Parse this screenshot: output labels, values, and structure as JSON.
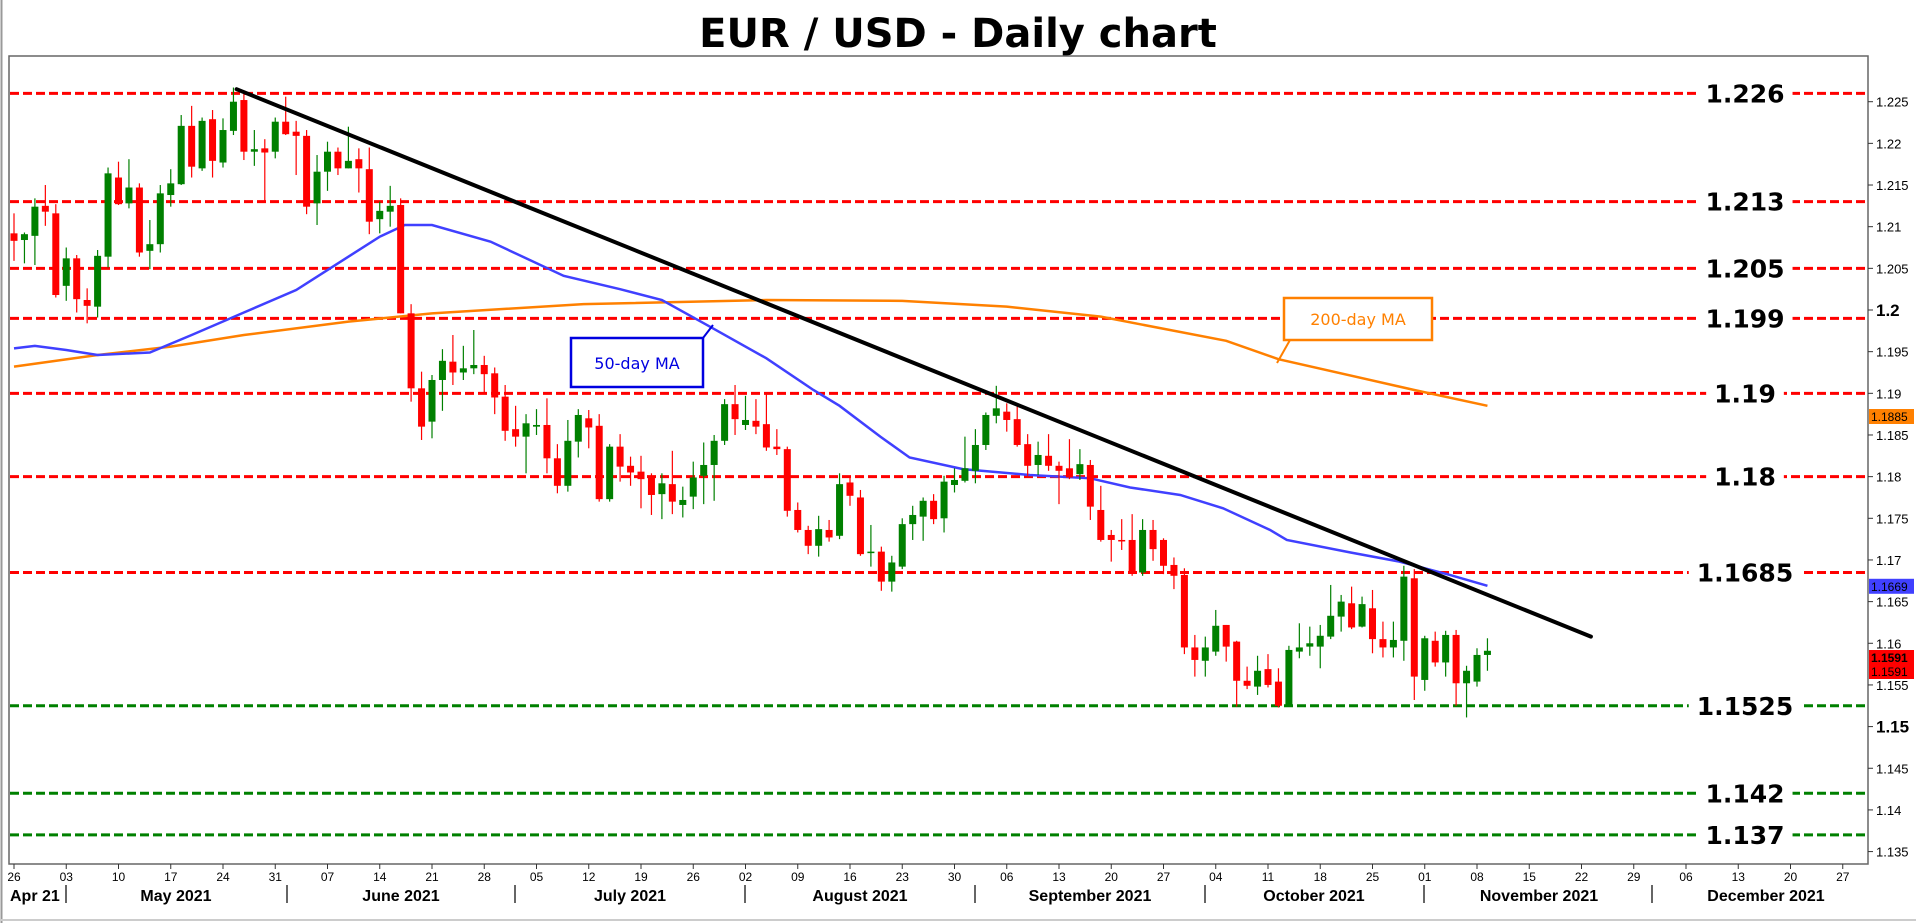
{
  "chart_data": {
    "type": "candlestick",
    "title": "EUR / USD - Daily chart",
    "ylim": [
      1.133,
      1.2305
    ],
    "y_ticks": [
      "1.135",
      "1.14",
      "1.145",
      "1.15",
      "1.155",
      "1.16",
      "1.165",
      "1.17",
      "1.175",
      "1.18",
      "1.185",
      "1.19",
      "1.195",
      "1.2",
      "1.205",
      "1.21",
      "1.215",
      "1.22",
      "1.225"
    ],
    "y_major_ticks": [
      "1.2",
      "1.15"
    ],
    "x_day_ticks": [
      "26",
      "03",
      "10",
      "17",
      "24",
      "31",
      "07",
      "14",
      "21",
      "28",
      "05",
      "12",
      "19",
      "26",
      "02",
      "09",
      "16",
      "23",
      "30",
      "06",
      "13",
      "20",
      "27",
      "04",
      "11",
      "18",
      "25",
      "01",
      "08",
      "15",
      "22",
      "29",
      "06",
      "13",
      "20",
      "27"
    ],
    "x_months": [
      "Apr 21",
      "May 2021",
      "June 2021",
      "July 2021",
      "August 2021",
      "September 2021",
      "October 2021",
      "November 2021",
      "December 2021"
    ],
    "colors": {
      "up": "#008000",
      "down": "#ff0000",
      "ma50": "#4040ff",
      "ma200": "#ff8000",
      "trendline": "#000000",
      "resistance": "#ff0000",
      "support": "#008000"
    },
    "candles_ohlc": [
      [
        1.2092,
        1.2116,
        1.2059,
        1.2083
      ],
      [
        1.2084,
        1.2093,
        1.2056,
        1.2091
      ],
      [
        1.2089,
        1.2134,
        1.2054,
        1.2124
      ],
      [
        1.2125,
        1.215,
        1.2101,
        1.2118
      ],
      [
        1.2116,
        1.2127,
        1.2015,
        1.2018
      ],
      [
        1.2029,
        1.2075,
        1.2011,
        1.2062
      ],
      [
        1.2062,
        1.2066,
        1.1997,
        1.2013
      ],
      [
        1.2012,
        1.2026,
        1.1984,
        1.2005
      ],
      [
        1.2004,
        1.2072,
        1.1991,
        1.2065
      ],
      [
        1.2064,
        1.2171,
        1.2051,
        1.2164
      ],
      [
        1.2159,
        1.2178,
        1.2126,
        1.2127
      ],
      [
        1.2128,
        1.2181,
        1.2122,
        1.2147
      ],
      [
        1.2147,
        1.2152,
        1.2064,
        1.2069
      ],
      [
        1.2071,
        1.2108,
        1.2049,
        1.2079
      ],
      [
        1.2079,
        1.215,
        1.2069,
        1.214
      ],
      [
        1.2138,
        1.2169,
        1.2124,
        1.2152
      ],
      [
        1.2151,
        1.2234,
        1.215,
        1.2221
      ],
      [
        1.2221,
        1.2245,
        1.2159,
        1.2172
      ],
      [
        1.217,
        1.2231,
        1.2167,
        1.2227
      ],
      [
        1.2229,
        1.224,
        1.2159,
        1.2179
      ],
      [
        1.2177,
        1.223,
        1.2171,
        1.2216
      ],
      [
        1.2215,
        1.2267,
        1.221,
        1.225
      ],
      [
        1.2252,
        1.226,
        1.218,
        1.219
      ],
      [
        1.219,
        1.2216,
        1.2173,
        1.2193
      ],
      [
        1.2194,
        1.2205,
        1.2131,
        1.2189
      ],
      [
        1.219,
        1.2231,
        1.2182,
        1.2226
      ],
      [
        1.2226,
        1.2256,
        1.221,
        1.2211
      ],
      [
        1.2214,
        1.2227,
        1.2162,
        1.2209
      ],
      [
        1.2209,
        1.2216,
        1.2115,
        1.2124
      ],
      [
        1.2128,
        1.2186,
        1.2102,
        1.2166
      ],
      [
        1.2166,
        1.2202,
        1.2143,
        1.219
      ],
      [
        1.219,
        1.2195,
        1.2162,
        1.217
      ],
      [
        1.217,
        1.222,
        1.217,
        1.2179
      ],
      [
        1.2181,
        1.2194,
        1.2141,
        1.217
      ],
      [
        1.2169,
        1.2195,
        1.2091,
        1.2106
      ],
      [
        1.2109,
        1.213,
        1.2092,
        1.2119
      ],
      [
        1.2118,
        1.2149,
        1.21,
        1.2125
      ],
      [
        1.2126,
        1.2134,
        1.1996,
        1.1996
      ],
      [
        1.1996,
        1.2007,
        1.189,
        1.1906
      ],
      [
        1.1906,
        1.1926,
        1.1844,
        1.186
      ],
      [
        1.1866,
        1.1922,
        1.1846,
        1.1916
      ],
      [
        1.1916,
        1.1953,
        1.1879,
        1.1939
      ],
      [
        1.1938,
        1.197,
        1.191,
        1.1925
      ],
      [
        1.1925,
        1.1957,
        1.1916,
        1.193
      ],
      [
        1.193,
        1.1976,
        1.1923,
        1.1934
      ],
      [
        1.1934,
        1.1945,
        1.1901,
        1.1923
      ],
      [
        1.1924,
        1.1931,
        1.1875,
        1.1895
      ],
      [
        1.1896,
        1.191,
        1.1843,
        1.1855
      ],
      [
        1.1857,
        1.1885,
        1.1836,
        1.1848
      ],
      [
        1.1848,
        1.1875,
        1.1804,
        1.1864
      ],
      [
        1.186,
        1.1881,
        1.185,
        1.1862
      ],
      [
        1.1862,
        1.1894,
        1.1804,
        1.1822
      ],
      [
        1.1822,
        1.1839,
        1.178,
        1.1789
      ],
      [
        1.1789,
        1.1868,
        1.1782,
        1.1843
      ],
      [
        1.1842,
        1.1881,
        1.1823,
        1.1874
      ],
      [
        1.187,
        1.188,
        1.1834,
        1.1859
      ],
      [
        1.1861,
        1.1875,
        1.177,
        1.1773
      ],
      [
        1.1773,
        1.1839,
        1.177,
        1.1836
      ],
      [
        1.1836,
        1.1851,
        1.1794,
        1.1812
      ],
      [
        1.1813,
        1.1824,
        1.1789,
        1.1805
      ],
      [
        1.1806,
        1.1825,
        1.1762,
        1.1797
      ],
      [
        1.18,
        1.1804,
        1.1754,
        1.1778
      ],
      [
        1.1779,
        1.1804,
        1.1749,
        1.1792
      ],
      [
        1.1791,
        1.1831,
        1.1755,
        1.177
      ],
      [
        1.1766,
        1.1788,
        1.1751,
        1.1772
      ],
      [
        1.1776,
        1.1818,
        1.1761,
        1.1799
      ],
      [
        1.1801,
        1.1841,
        1.1767,
        1.1814
      ],
      [
        1.1814,
        1.185,
        1.1771,
        1.1843
      ],
      [
        1.1843,
        1.1893,
        1.1838,
        1.1887
      ],
      [
        1.1887,
        1.191,
        1.185,
        1.1869
      ],
      [
        1.1862,
        1.1897,
        1.1856,
        1.1868
      ],
      [
        1.1867,
        1.1893,
        1.1851,
        1.186
      ],
      [
        1.1863,
        1.1901,
        1.1831,
        1.1835
      ],
      [
        1.1836,
        1.1857,
        1.1826,
        1.1833
      ],
      [
        1.1833,
        1.1836,
        1.1752,
        1.1759
      ],
      [
        1.176,
        1.1769,
        1.1733,
        1.1736
      ],
      [
        1.1736,
        1.1741,
        1.1707,
        1.1717
      ],
      [
        1.1717,
        1.1753,
        1.1704,
        1.1737
      ],
      [
        1.1736,
        1.1748,
        1.1722,
        1.1727
      ],
      [
        1.1729,
        1.1804,
        1.1725,
        1.1791
      ],
      [
        1.1793,
        1.18,
        1.1765,
        1.1777
      ],
      [
        1.1775,
        1.1784,
        1.1705,
        1.1707
      ],
      [
        1.1709,
        1.1742,
        1.1692,
        1.171
      ],
      [
        1.171,
        1.1716,
        1.1663,
        1.1674
      ],
      [
        1.1674,
        1.1705,
        1.1662,
        1.1697
      ],
      [
        1.1692,
        1.175,
        1.1689,
        1.1743
      ],
      [
        1.1743,
        1.1765,
        1.1724,
        1.1754
      ],
      [
        1.1752,
        1.1775,
        1.1723,
        1.1771
      ],
      [
        1.1771,
        1.1779,
        1.1743,
        1.1749
      ],
      [
        1.175,
        1.1801,
        1.1733,
        1.1794
      ],
      [
        1.179,
        1.181,
        1.1781,
        1.1796
      ],
      [
        1.1795,
        1.1848,
        1.1793,
        1.181
      ],
      [
        1.1807,
        1.1857,
        1.1792,
        1.1838
      ],
      [
        1.1838,
        1.1877,
        1.1832,
        1.1874
      ],
      [
        1.1873,
        1.1909,
        1.1864,
        1.1882
      ],
      [
        1.1878,
        1.1888,
        1.1854,
        1.1868
      ],
      [
        1.1869,
        1.1884,
        1.1836,
        1.1838
      ],
      [
        1.1839,
        1.1851,
        1.1801,
        1.1813
      ],
      [
        1.1814,
        1.1842,
        1.1802,
        1.1826
      ],
      [
        1.1825,
        1.1851,
        1.1807,
        1.1813
      ],
      [
        1.1813,
        1.1818,
        1.1767,
        1.1807
      ],
      [
        1.181,
        1.1845,
        1.1797,
        1.1799
      ],
      [
        1.1803,
        1.1833,
        1.1796,
        1.1815
      ],
      [
        1.1814,
        1.182,
        1.1748,
        1.1764
      ],
      [
        1.176,
        1.1789,
        1.1722,
        1.1724
      ],
      [
        1.173,
        1.1736,
        1.1698,
        1.1724
      ],
      [
        1.1724,
        1.1749,
        1.1712,
        1.1723
      ],
      [
        1.1724,
        1.1755,
        1.1681,
        1.1685
      ],
      [
        1.1685,
        1.1749,
        1.1681,
        1.1736
      ],
      [
        1.1736,
        1.1748,
        1.1699,
        1.1713
      ],
      [
        1.1724,
        1.1726,
        1.1683,
        1.1693
      ],
      [
        1.1694,
        1.1703,
        1.1665,
        1.1681
      ],
      [
        1.1682,
        1.169,
        1.1587,
        1.1595
      ],
      [
        1.1595,
        1.161,
        1.156,
        1.158
      ],
      [
        1.1579,
        1.1608,
        1.156,
        1.1595
      ],
      [
        1.159,
        1.164,
        1.1585,
        1.1621
      ],
      [
        1.1622,
        1.1622,
        1.1578,
        1.1596
      ],
      [
        1.1602,
        1.1603,
        1.1524,
        1.1555
      ],
      [
        1.1555,
        1.1572,
        1.1545,
        1.1549
      ],
      [
        1.1548,
        1.1585,
        1.1538,
        1.1567
      ],
      [
        1.1569,
        1.1587,
        1.1547,
        1.155
      ],
      [
        1.1554,
        1.157,
        1.1523,
        1.1525
      ],
      [
        1.1525,
        1.1597,
        1.1525,
        1.1592
      ],
      [
        1.159,
        1.1624,
        1.1582,
        1.1595
      ],
      [
        1.1596,
        1.162,
        1.1585,
        1.16
      ],
      [
        1.1596,
        1.1622,
        1.157,
        1.1609
      ],
      [
        1.1608,
        1.167,
        1.1605,
        1.1633
      ],
      [
        1.1632,
        1.1658,
        1.1614,
        1.165
      ],
      [
        1.1648,
        1.1668,
        1.1617,
        1.1619
      ],
      [
        1.162,
        1.1656,
        1.1619,
        1.1647
      ],
      [
        1.1642,
        1.1664,
        1.1588,
        1.1605
      ],
      [
        1.1605,
        1.1626,
        1.1583,
        1.1595
      ],
      [
        1.1595,
        1.1626,
        1.1583,
        1.1604
      ],
      [
        1.1603,
        1.1693,
        1.1579,
        1.168
      ],
      [
        1.1678,
        1.1689,
        1.1532,
        1.156
      ],
      [
        1.1556,
        1.1609,
        1.1543,
        1.1606
      ],
      [
        1.1603,
        1.1614,
        1.1572,
        1.1577
      ],
      [
        1.1577,
        1.1615,
        1.156,
        1.161
      ],
      [
        1.161,
        1.1616,
        1.1525,
        1.1552
      ],
      [
        1.1552,
        1.1573,
        1.1511,
        1.1567
      ],
      [
        1.1554,
        1.1594,
        1.1548,
        1.1586
      ],
      [
        1.1586,
        1.1606,
        1.1567,
        1.1591
      ]
    ],
    "ma50": [
      [
        0,
        1.1954
      ],
      [
        2,
        1.1957
      ],
      [
        5,
        1.1952
      ],
      [
        8,
        1.1946
      ],
      [
        13,
        1.1949
      ],
      [
        17,
        1.197
      ],
      [
        22,
        1.1997
      ],
      [
        27,
        1.2024
      ],
      [
        32,
        1.2064
      ],
      [
        35,
        1.2088
      ],
      [
        37.4,
        1.2102
      ],
      [
        40,
        1.2102
      ],
      [
        45.6,
        1.2082
      ],
      [
        52.6,
        1.2041
      ],
      [
        58,
        1.2025
      ],
      [
        62,
        1.2012
      ],
      [
        66.6,
        1.198
      ],
      [
        72,
        1.1942
      ],
      [
        76.5,
        1.1904
      ],
      [
        79,
        1.1885
      ],
      [
        82.9,
        1.1848
      ],
      [
        85.7,
        1.1823
      ],
      [
        90.8,
        1.1809
      ],
      [
        97.2,
        1.1802
      ],
      [
        103,
        1.1798
      ],
      [
        106.8,
        1.1787
      ],
      [
        111.6,
        1.1778
      ],
      [
        115.7,
        1.1762
      ],
      [
        120.2,
        1.1736
      ],
      [
        121.8,
        1.1724
      ],
      [
        127.9,
        1.1709
      ],
      [
        132.6,
        1.1698
      ],
      [
        137.4,
        1.1682
      ],
      [
        141,
        1.1669
      ]
    ],
    "ma200": [
      [
        0,
        1.1932
      ],
      [
        8,
        1.1946
      ],
      [
        15,
        1.1956
      ],
      [
        22,
        1.197
      ],
      [
        32,
        1.1986
      ],
      [
        40,
        1.1996
      ],
      [
        54.5,
        1.2007
      ],
      [
        72,
        1.2012
      ],
      [
        85,
        1.2011
      ],
      [
        95,
        1.2004
      ],
      [
        104,
        1.1992
      ],
      [
        116,
        1.1963
      ],
      [
        121,
        1.1941
      ],
      [
        134,
        1.1904
      ],
      [
        141,
        1.1885
      ]
    ],
    "trendline": [
      [
        21.3,
        1.2265
      ],
      [
        150.9,
        1.1608
      ]
    ],
    "levels": [
      {
        "value": 1.226,
        "label": "1.226",
        "type": "resistance"
      },
      {
        "value": 1.213,
        "label": "1.213",
        "type": "resistance"
      },
      {
        "value": 1.205,
        "label": "1.205",
        "type": "resistance"
      },
      {
        "value": 1.199,
        "label": "1.199",
        "type": "resistance"
      },
      {
        "value": 1.19,
        "label": "1.19",
        "type": "resistance"
      },
      {
        "value": 1.18,
        "label": "1.18",
        "type": "resistance"
      },
      {
        "value": 1.1685,
        "label": "1.1685",
        "type": "resistance"
      },
      {
        "value": 1.1525,
        "label": "1.1525",
        "type": "support"
      },
      {
        "value": 1.142,
        "label": "1.142",
        "type": "support"
      },
      {
        "value": 1.137,
        "label": "1.137",
        "type": "support"
      }
    ],
    "annotations": {
      "ma50_label": "50-day MA",
      "ma200_label": "200-day MA"
    },
    "price_labels": [
      {
        "value": 1.1885,
        "label": "1.1885",
        "series": "ma200",
        "color": "#ff8000"
      },
      {
        "value": 1.1669,
        "label": "1.1669",
        "series": "ma50",
        "color": "#4040ff"
      },
      {
        "value": 1.1591,
        "label": "1.1591",
        "series": "bid",
        "color": "#ff0000"
      },
      {
        "value": 1.1591,
        "label": "1.1591",
        "series": "last",
        "color": "#ff0000"
      }
    ]
  }
}
